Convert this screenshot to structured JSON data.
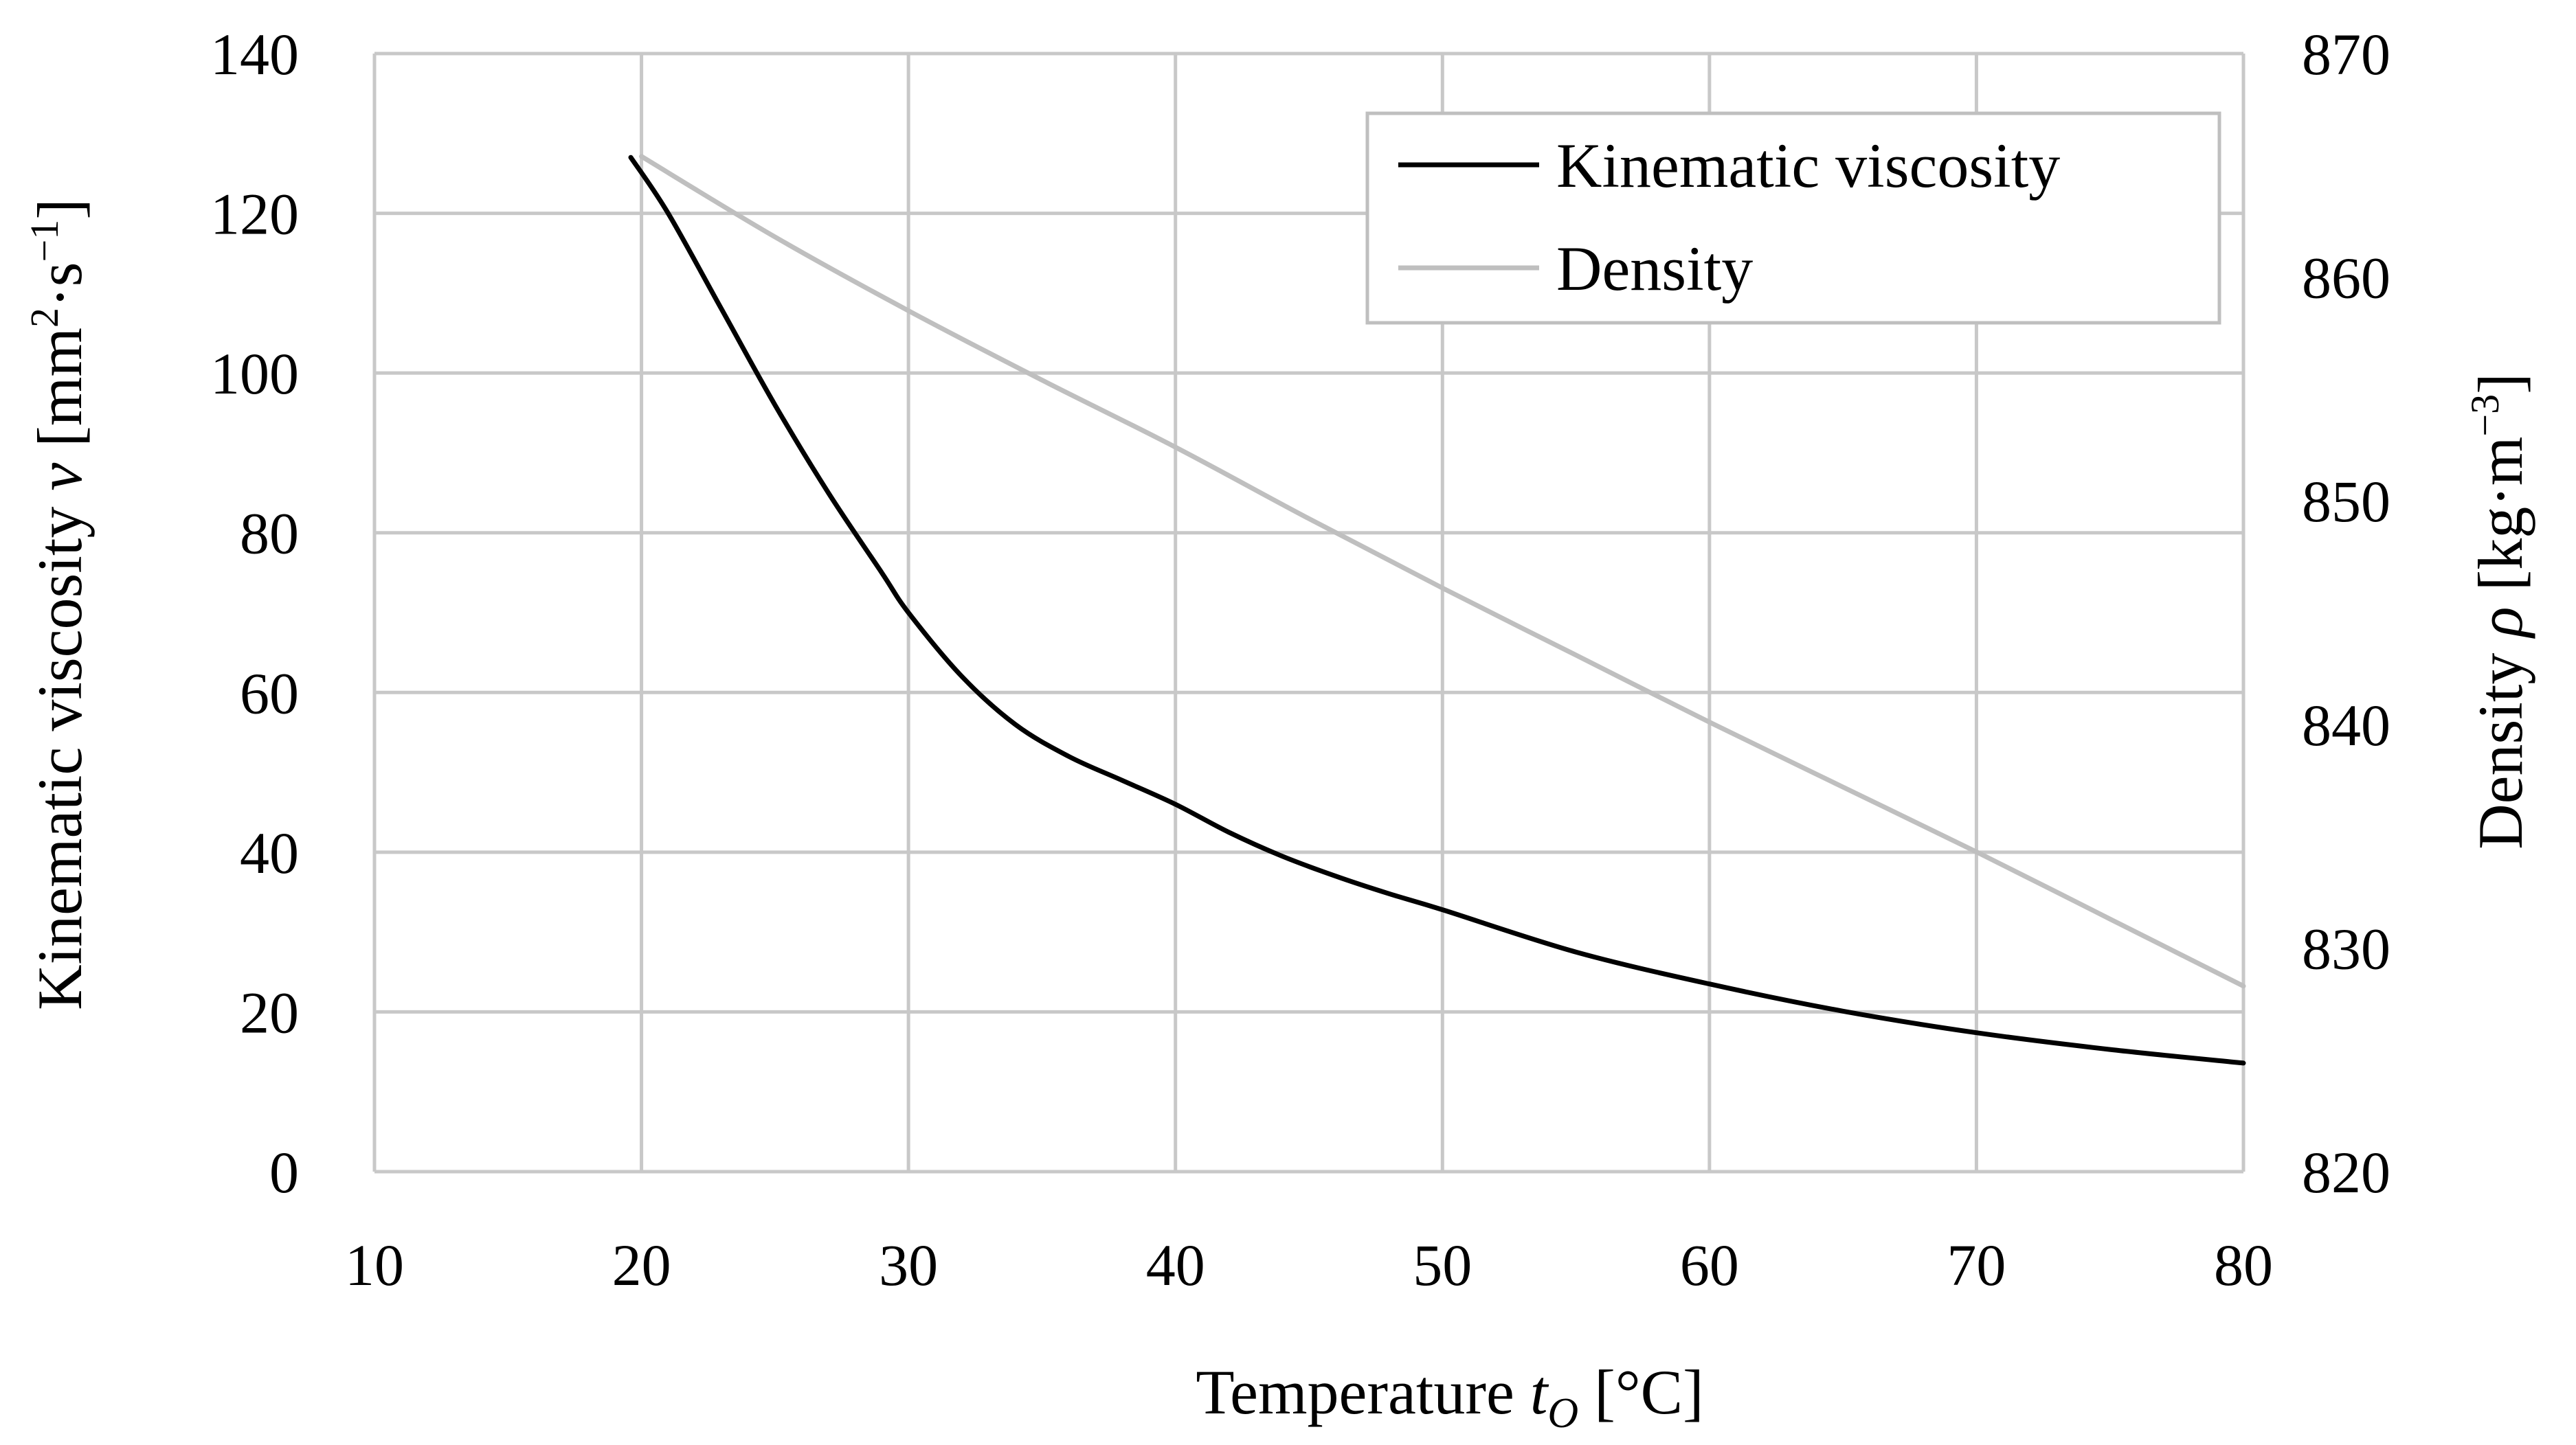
{
  "chart_data": {
    "type": "line",
    "title": "",
    "xlabel": {
      "text": "Temperature ",
      "symbol": "t",
      "subscript": "O",
      "unit": " [°C]"
    },
    "ylabel_left": {
      "text": "Kinematic viscosity ",
      "symbol": "ν",
      "unit_prefix": " [mm",
      "sup1": "2",
      "unit_mid": "·s",
      "sup2": "−1",
      "unit_suffix": "]"
    },
    "ylabel_right": {
      "text": "Density ",
      "symbol": "ρ",
      "unit_prefix": " [kg·m",
      "sup1": "−3",
      "unit_suffix": "]"
    },
    "xlim": [
      10,
      80
    ],
    "ylim_left": [
      0,
      140
    ],
    "ylim_right": [
      820,
      870
    ],
    "x_ticks": [
      10,
      20,
      30,
      40,
      50,
      60,
      70,
      80
    ],
    "y_left_ticks": [
      0,
      20,
      40,
      60,
      80,
      100,
      120,
      140
    ],
    "y_right_ticks": [
      820,
      830,
      840,
      850,
      860,
      870
    ],
    "grid": true,
    "legend_position": "top-right",
    "series": [
      {
        "name": "Kinematic viscosity",
        "axis": "left",
        "color": "#000000",
        "x": [
          19.6,
          21,
          23,
          25,
          27,
          29,
          30,
          32,
          34,
          36,
          38,
          40,
          42,
          44,
          46,
          48,
          50,
          55,
          60,
          65,
          70,
          75,
          80
        ],
        "y": [
          127,
          120,
          108,
          96,
          85,
          75,
          70,
          62,
          56,
          52,
          49,
          46,
          42.5,
          39.5,
          37,
          34.8,
          32.8,
          27.5,
          23.5,
          20.1,
          17.4,
          15.3,
          13.6
        ]
      },
      {
        "name": "Density",
        "axis": "right",
        "color": "#bfbfbf",
        "x": [
          20,
          25,
          30,
          35,
          40,
          45,
          50,
          55,
          60,
          65,
          70,
          75,
          80
        ],
        "y": [
          865.4,
          861.8,
          858.5,
          855.4,
          852.4,
          849.2,
          846.1,
          843.1,
          840.1,
          837.2,
          834.3,
          831.3,
          828.3
        ]
      }
    ]
  }
}
